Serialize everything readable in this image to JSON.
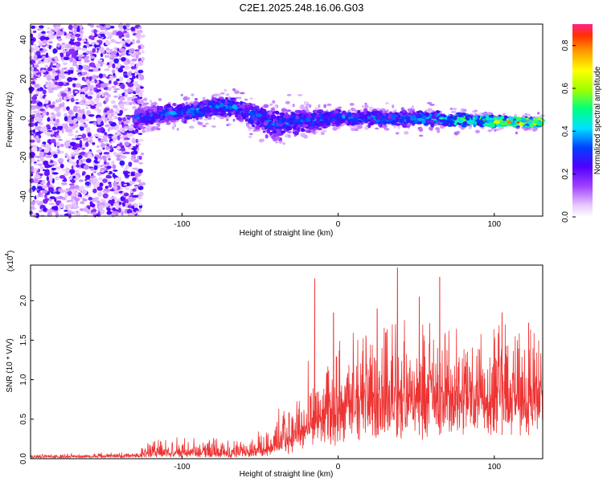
{
  "title": "C2E1.2025.248.16.06.G03",
  "chart_data": [
    {
      "type": "heatmap",
      "name": "spectrogram",
      "xlabel": "Height of straight line (km)",
      "ylabel": "Frequency (Hz)",
      "xlim": [
        -197,
        131
      ],
      "ylim": [
        -50,
        48
      ],
      "xticks": [
        -100,
        0,
        100
      ],
      "yticks": [
        -40,
        -20,
        0,
        20,
        40
      ],
      "colorbar": {
        "label": "Normalized spectral amplitude",
        "range": [
          0,
          0.9
        ],
        "ticks": [
          0.0,
          0.2,
          0.4,
          0.6,
          0.8
        ]
      },
      "description_points": [
        {
          "x": -180,
          "y_spread": 48,
          "amp": 0.05
        },
        {
          "x": -130,
          "y_center": 0,
          "y_spread": 4,
          "amp": 0.3
        },
        {
          "x": -70,
          "y_center": 6,
          "y_spread": 4,
          "amp": 0.35
        },
        {
          "x": -40,
          "y_center": -3,
          "y_spread": 6,
          "amp": 0.3
        },
        {
          "x": 0,
          "y_center": 0,
          "y_spread": 3,
          "amp": 0.35
        },
        {
          "x": 50,
          "y_center": 0,
          "y_spread": 3,
          "amp": 0.35
        },
        {
          "x": 110,
          "y_center": -2,
          "y_spread": 2,
          "amp": 0.7
        }
      ]
    },
    {
      "type": "line",
      "name": "snr",
      "xlabel": "Height of straight line (km)",
      "ylabel": "SNR (10 * V/V)",
      "scale_label": "(x10",
      "scale_exp": "4",
      "xlim": [
        -197,
        131
      ],
      "ylim": [
        0,
        2.45
      ],
      "xticks": [
        -100,
        0,
        100
      ],
      "yticks": [
        0.0,
        0.5,
        1.0,
        1.5,
        2.0
      ],
      "color": "#ee3333",
      "envelope": {
        "x": [
          -197,
          -130,
          -120,
          -100,
          -70,
          -50,
          -40,
          -30,
          -20,
          -10,
          0,
          10,
          20,
          30,
          40,
          60,
          80,
          100,
          131
        ],
        "base": [
          0.02,
          0.03,
          0.05,
          0.06,
          0.04,
          0.08,
          0.12,
          0.2,
          0.3,
          0.45,
          0.55,
          0.65,
          0.7,
          0.75,
          0.75,
          0.75,
          0.75,
          0.8,
          0.85
        ],
        "top": [
          0.05,
          0.08,
          0.2,
          0.25,
          0.2,
          0.3,
          0.5,
          0.7,
          0.95,
          1.1,
          1.2,
          1.35,
          1.45,
          1.5,
          1.5,
          1.45,
          1.5,
          1.45,
          1.45
        ]
      },
      "spikes": [
        {
          "x": -15,
          "y": 2.28
        },
        {
          "x": 38,
          "y": 2.42
        },
        {
          "x": 65,
          "y": 2.3
        },
        {
          "x": 52,
          "y": 2.05
        },
        {
          "x": 25,
          "y": 1.9
        },
        {
          "x": 105,
          "y": 1.85
        },
        {
          "x": 122,
          "y": 1.72
        },
        {
          "x": -3,
          "y": 1.85
        }
      ]
    }
  ]
}
